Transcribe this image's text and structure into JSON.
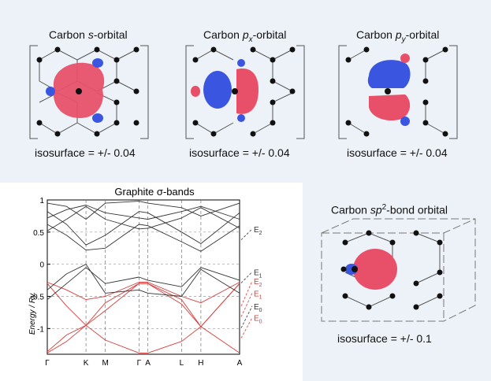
{
  "orbitals": [
    {
      "title_prefix": "Carbon ",
      "title_italic": "s",
      "title_sub": "",
      "title_sup": "",
      "title_suffix": "-orbital",
      "iso": "isosurface = +/- 0.04"
    },
    {
      "title_prefix": "Carbon ",
      "title_italic": "p",
      "title_sub": "x",
      "title_sup": "",
      "title_suffix": "-orbital",
      "iso": "isosurface = +/- 0.04"
    },
    {
      "title_prefix": "Carbon ",
      "title_italic": "p",
      "title_sub": "y",
      "title_sup": "",
      "title_suffix": "-orbital",
      "iso": "isosurface = +/- 0.04"
    },
    {
      "title_prefix": "Carbon ",
      "title_italic": "sp",
      "title_sub": "",
      "title_sup": "2",
      "title_suffix": "-bond orbital",
      "iso": "isosurface = +/- 0.1"
    }
  ],
  "colors": {
    "positive_lobe": "#e8506a",
    "negative_lobe": "#3a55e0",
    "atom": "#111111",
    "band_black": "#333333",
    "band_red": "#d93a3a"
  },
  "chart_data": {
    "type": "line",
    "title": "Graphite σ-bands",
    "ylabel": "Energy / Ry.",
    "xlabel": "",
    "ylim": [
      -1.4,
      1.0
    ],
    "yticks": [
      1,
      0.5,
      0,
      -0.5,
      -1
    ],
    "ytick_labels": [
      "1",
      "0.5",
      "0",
      "-0.5",
      "-1"
    ],
    "kpoints": [
      {
        "label": "Γ",
        "x": 0
      },
      {
        "label": "K",
        "x": 1
      },
      {
        "label": "M",
        "x": 1.5
      },
      {
        "label": "Γ",
        "x": 2.37
      },
      {
        "label": "A",
        "x": 2.6
      },
      {
        "label": "L",
        "x": 3.47
      },
      {
        "label": "H",
        "x": 3.97
      },
      {
        "label": "A",
        "x": 4.97
      }
    ],
    "energy_labels": [
      {
        "base": "E",
        "sub": "2",
        "color": "black",
        "y": 0.55
      },
      {
        "base": "E",
        "sub": "1",
        "color": "black",
        "y": -0.12
      },
      {
        "base": "E",
        "sub": "2",
        "color": "red",
        "y": -0.26
      },
      {
        "base": "E",
        "sub": "1",
        "color": "red",
        "y": -0.45
      },
      {
        "base": "E",
        "sub": "0",
        "color": "black",
        "y": -0.65
      },
      {
        "base": "E",
        "sub": "0",
        "color": "red",
        "y": -0.83
      }
    ],
    "series": [
      {
        "color": "red",
        "points": [
          [
            0,
            -1.38
          ],
          [
            0.5,
            -1.2
          ],
          [
            1,
            -0.95
          ],
          [
            1.5,
            -1.18
          ],
          [
            2.37,
            -1.38
          ],
          [
            2.6,
            -1.38
          ],
          [
            3.47,
            -1.2
          ],
          [
            3.97,
            -0.97
          ],
          [
            4.97,
            -1.38
          ]
        ]
      },
      {
        "color": "red",
        "points": [
          [
            0,
            -1.36
          ],
          [
            0.5,
            -1.1
          ],
          [
            1,
            -0.95
          ],
          [
            1.5,
            -0.72
          ],
          [
            2.37,
            -0.3
          ],
          [
            2.6,
            -0.3
          ],
          [
            3.47,
            -0.62
          ],
          [
            3.97,
            -0.97
          ],
          [
            4.97,
            -0.3
          ]
        ]
      },
      {
        "color": "red",
        "points": [
          [
            0,
            -0.3
          ],
          [
            0.5,
            -0.65
          ],
          [
            1,
            -0.95
          ],
          [
            1.5,
            -0.6
          ],
          [
            2.37,
            -0.3
          ],
          [
            2.6,
            -0.3
          ],
          [
            3.47,
            -0.55
          ],
          [
            3.97,
            -0.97
          ],
          [
            4.97,
            -0.3
          ]
        ]
      },
      {
        "color": "red",
        "points": [
          [
            0,
            -0.28
          ],
          [
            0.5,
            -0.4
          ],
          [
            1,
            -0.55
          ],
          [
            1.5,
            -0.5
          ],
          [
            2.37,
            -0.28
          ],
          [
            2.6,
            -0.28
          ],
          [
            3.47,
            -0.5
          ],
          [
            3.97,
            -0.6
          ],
          [
            4.97,
            -0.28
          ]
        ]
      },
      {
        "color": "black",
        "points": [
          [
            0,
            -0.55
          ],
          [
            0.5,
            -0.3
          ],
          [
            1,
            -0.05
          ],
          [
            1.5,
            -0.3
          ],
          [
            2.37,
            -0.2
          ],
          [
            2.6,
            -0.25
          ],
          [
            3.47,
            -0.35
          ],
          [
            3.97,
            -0.05
          ],
          [
            4.97,
            -0.25
          ]
        ]
      },
      {
        "color": "black",
        "points": [
          [
            0,
            -0.4
          ],
          [
            0.5,
            -0.15
          ],
          [
            1,
            0.0
          ],
          [
            1.5,
            -0.45
          ],
          [
            2.37,
            -0.4
          ],
          [
            2.6,
            -0.45
          ],
          [
            3.47,
            -0.5
          ],
          [
            3.97,
            -0.08
          ],
          [
            4.97,
            -0.45
          ]
        ]
      },
      {
        "color": "black",
        "points": [
          [
            0,
            0.52
          ],
          [
            0.5,
            0.7
          ],
          [
            1,
            0.9
          ],
          [
            1.5,
            0.7
          ],
          [
            2.37,
            0.55
          ],
          [
            2.6,
            0.56
          ],
          [
            3.47,
            0.72
          ],
          [
            3.97,
            0.88
          ],
          [
            4.97,
            0.56
          ]
        ]
      },
      {
        "color": "black",
        "points": [
          [
            0,
            0.72
          ],
          [
            0.5,
            0.85
          ],
          [
            1,
            0.92
          ],
          [
            1.5,
            0.8
          ],
          [
            2.37,
            0.72
          ],
          [
            2.6,
            0.7
          ],
          [
            3.47,
            0.82
          ],
          [
            3.97,
            0.9
          ],
          [
            4.97,
            0.7
          ]
        ]
      },
      {
        "color": "black",
        "points": [
          [
            0,
            0.82
          ],
          [
            0.5,
            0.62
          ],
          [
            1,
            0.3
          ],
          [
            1.5,
            0.45
          ],
          [
            2.37,
            0.82
          ],
          [
            2.6,
            0.8
          ],
          [
            3.47,
            0.5
          ],
          [
            3.97,
            0.32
          ],
          [
            4.97,
            0.8
          ]
        ]
      },
      {
        "color": "black",
        "points": [
          [
            0,
            0.95
          ],
          [
            0.5,
            0.9
          ],
          [
            1,
            0.7
          ],
          [
            1.5,
            0.95
          ],
          [
            2.37,
            0.98
          ],
          [
            2.6,
            0.95
          ],
          [
            3.47,
            0.88
          ],
          [
            3.97,
            0.75
          ],
          [
            4.97,
            0.95
          ]
        ]
      },
      {
        "color": "black",
        "points": [
          [
            0,
            0.62
          ],
          [
            0.5,
            0.45
          ],
          [
            1,
            0.22
          ],
          [
            1.5,
            0.25
          ],
          [
            2.37,
            0.62
          ],
          [
            2.6,
            0.6
          ],
          [
            3.47,
            0.35
          ],
          [
            3.97,
            0.2
          ],
          [
            4.97,
            0.6
          ]
        ]
      }
    ]
  }
}
